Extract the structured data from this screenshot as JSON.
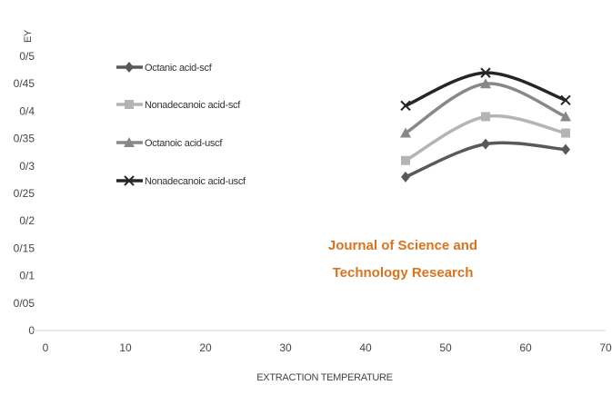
{
  "chart_data": {
    "type": "line",
    "title": "",
    "xlabel": "EXTRACTION TEMPERATURE",
    "ylabel": "EY",
    "xlim": [
      0,
      70
    ],
    "ylim": [
      0,
      0.5
    ],
    "x_ticks": [
      "0",
      "10",
      "20",
      "30",
      "40",
      "50",
      "60",
      "70"
    ],
    "y_ticks": [
      "0",
      "0/05",
      "0/1",
      "0/15",
      "0/2",
      "0/25",
      "0/3",
      "0/35",
      "0/4",
      "0/45",
      "0/5"
    ],
    "grid": false,
    "legend_position": "left",
    "x": [
      45,
      55,
      65
    ],
    "series": [
      {
        "name": "Octanic acid-scf",
        "values": [
          0.28,
          0.34,
          0.33
        ],
        "color": "#595959",
        "marker": "diamond"
      },
      {
        "name": "Nonadecanoic acid-scf",
        "values": [
          0.31,
          0.39,
          0.36
        ],
        "color": "#b4b4b4",
        "marker": "square"
      },
      {
        "name": "Octanoic acid-uscf",
        "values": [
          0.36,
          0.45,
          0.39
        ],
        "color": "#888888",
        "marker": "triangle"
      },
      {
        "name": "Nonadecanoic acid-uscf",
        "values": [
          0.41,
          0.47,
          0.42
        ],
        "color": "#262626",
        "marker": "x"
      }
    ],
    "watermark": {
      "lines": [
        "Journal of Science and",
        "Technology Research"
      ],
      "color": "#d9731e"
    }
  }
}
